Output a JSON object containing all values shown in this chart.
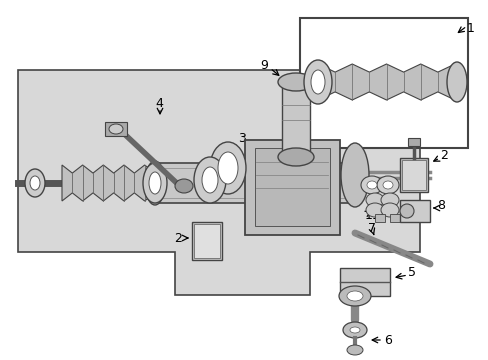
{
  "background_color": "#ffffff",
  "diagram_bg": "#d8d8d8",
  "border_color": "#555555",
  "fig_width": 4.89,
  "fig_height": 3.6,
  "dpi": 100
}
